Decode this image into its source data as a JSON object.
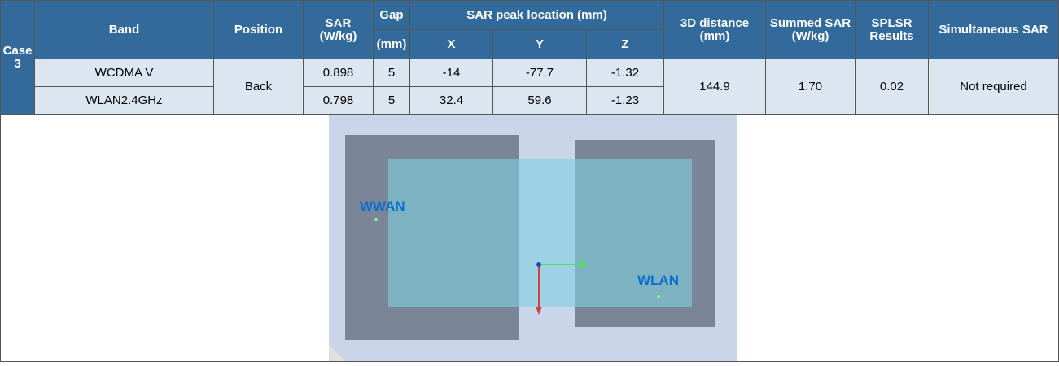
{
  "table": {
    "case": "Case 3",
    "headers": {
      "band": "Band",
      "position": "Position",
      "sar": "SAR (W/kg)",
      "gap": "Gap",
      "gap_unit": "(mm)",
      "peak": "SAR peak location (mm)",
      "x": "X",
      "y": "Y",
      "z": "Z",
      "distance": "3D distance (mm)",
      "summed": "Summed SAR (W/kg)",
      "splsr": "SPLSR Results",
      "simultaneous": "Simultaneous SAR"
    },
    "rows": [
      [
        "WCDMA V",
        "0.898",
        "5",
        "-14",
        "-77.7",
        "-1.32"
      ],
      [
        "WLAN2.4GHz",
        "0.798",
        "5",
        "32.4",
        "59.6",
        "-1.23"
      ]
    ],
    "position": "Back",
    "distance": "144.9",
    "summed": "1.70",
    "splsr": "0.02",
    "simultaneous": "Not required"
  },
  "figure": {
    "labels": [
      "WWAN",
      "WLAN"
    ]
  }
}
